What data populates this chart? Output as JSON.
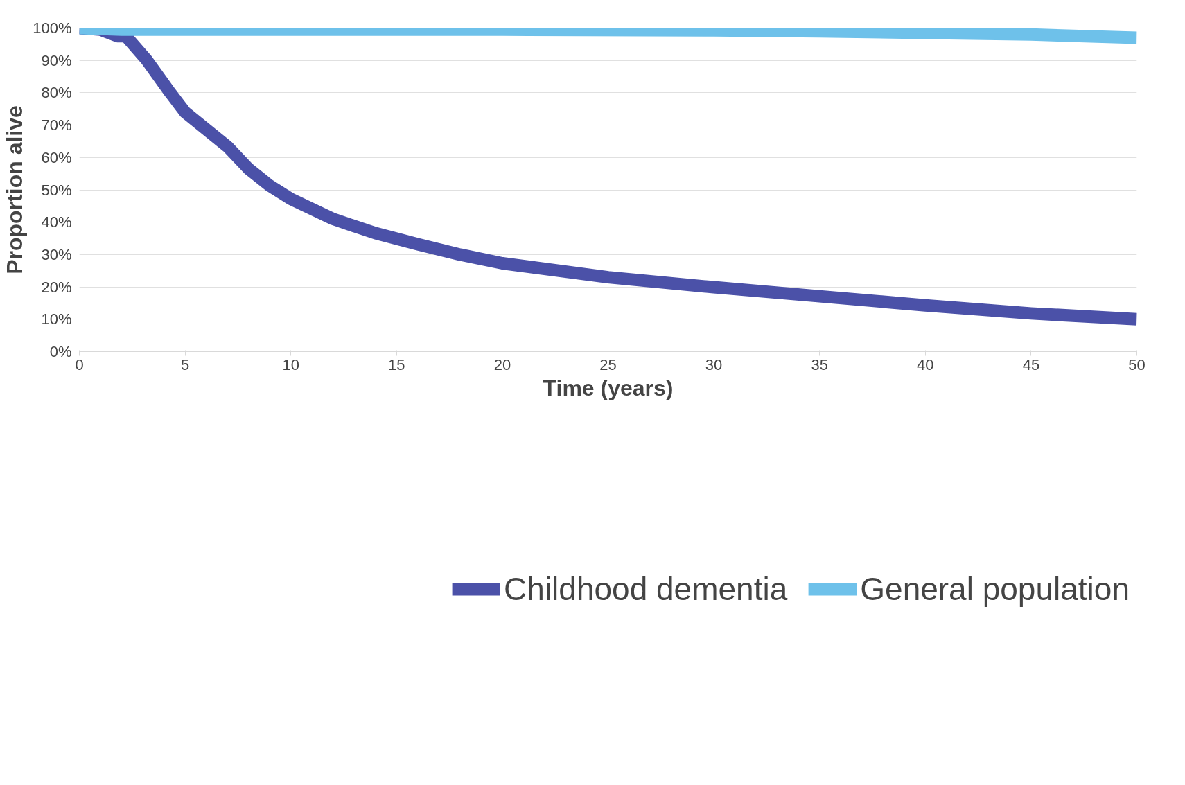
{
  "chart_data": {
    "type": "line",
    "xlabel": "Time (years)",
    "ylabel": "Proportion alive",
    "xlim": [
      0,
      50
    ],
    "xticks": [
      0,
      5,
      10,
      15,
      20,
      25,
      30,
      35,
      40,
      45,
      50
    ],
    "ylim": [
      0,
      100
    ],
    "yticks": [
      {
        "value": 0,
        "label": "0%"
      },
      {
        "value": 10,
        "label": "10%"
      },
      {
        "value": 20,
        "label": "20%"
      },
      {
        "value": 30,
        "label": "30%"
      },
      {
        "value": 40,
        "label": "40%"
      },
      {
        "value": 50,
        "label": "50%"
      },
      {
        "value": 60,
        "label": "60%"
      },
      {
        "value": 70,
        "label": "70%"
      },
      {
        "value": 80,
        "label": "80%"
      },
      {
        "value": 90,
        "label": "90%"
      },
      {
        "value": 100,
        "label": "100%"
      }
    ],
    "grid": "y",
    "legend": "bottom",
    "marker": "none",
    "line_style": "solid",
    "series": [
      {
        "name": "Childhood dementia",
        "color": "#4b51a8",
        "x": [
          0,
          1,
          1.8,
          2.2,
          3.2,
          4.3,
          5,
          7,
          8,
          9,
          10,
          12,
          14,
          16,
          18,
          20,
          25,
          30,
          35,
          40,
          45,
          50
        ],
        "values": [
          100,
          99.5,
          97.5,
          97.5,
          90,
          80,
          74,
          63.4,
          56.5,
          51.3,
          47.2,
          41,
          36.6,
          33.2,
          30,
          27.3,
          23,
          19.9,
          17.1,
          14.3,
          11.8,
          10
        ]
      },
      {
        "name": "General population",
        "color": "#6ec1ea",
        "x": [
          0,
          2,
          10,
          20,
          30,
          35,
          40,
          45,
          50
        ],
        "values": [
          100,
          99.5,
          99.5,
          99.5,
          99.3,
          99,
          98.5,
          98,
          97
        ]
      }
    ]
  }
}
